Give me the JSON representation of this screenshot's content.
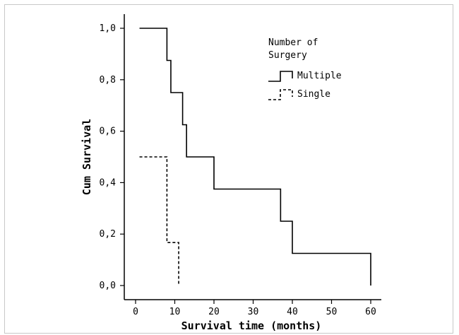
{
  "chart_data": {
    "type": "line",
    "subtype": "kaplan-meier step",
    "title": "",
    "xlabel": "Survival time (months)",
    "ylabel": "Cum Survival",
    "xlim": [
      0,
      60
    ],
    "ylim": [
      0,
      1
    ],
    "x_ticks": [
      0,
      10,
      20,
      30,
      40,
      50,
      60
    ],
    "y_ticks": [
      0.0,
      0.2,
      0.4,
      0.6,
      0.8,
      1.0
    ],
    "x_tick_labels": [
      "0",
      "10",
      "20",
      "30",
      "40",
      "50",
      "60"
    ],
    "y_tick_labels": [
      "0,0",
      "0,2",
      "0,4",
      "0,6",
      "0,8",
      "1,0"
    ],
    "legend": {
      "title_line1": "Number of",
      "title_line2": "Surgery",
      "position": "top-right"
    },
    "series": [
      {
        "name": "Multiple",
        "line_style": "solid",
        "color": "#000000",
        "points": [
          [
            1,
            1.0
          ],
          [
            8,
            0.875
          ],
          [
            9,
            0.75
          ],
          [
            12,
            0.625
          ],
          [
            13,
            0.5
          ],
          [
            20,
            0.375
          ],
          [
            37,
            0.25
          ],
          [
            40,
            0.125
          ],
          [
            60,
            0.0
          ]
        ],
        "end_x": 60
      },
      {
        "name": "Single",
        "line_style": "dashed",
        "color": "#000000",
        "points": [
          [
            1,
            0.5
          ],
          [
            8,
            0.167
          ],
          [
            11,
            0.0
          ]
        ],
        "end_x": 11
      }
    ]
  }
}
